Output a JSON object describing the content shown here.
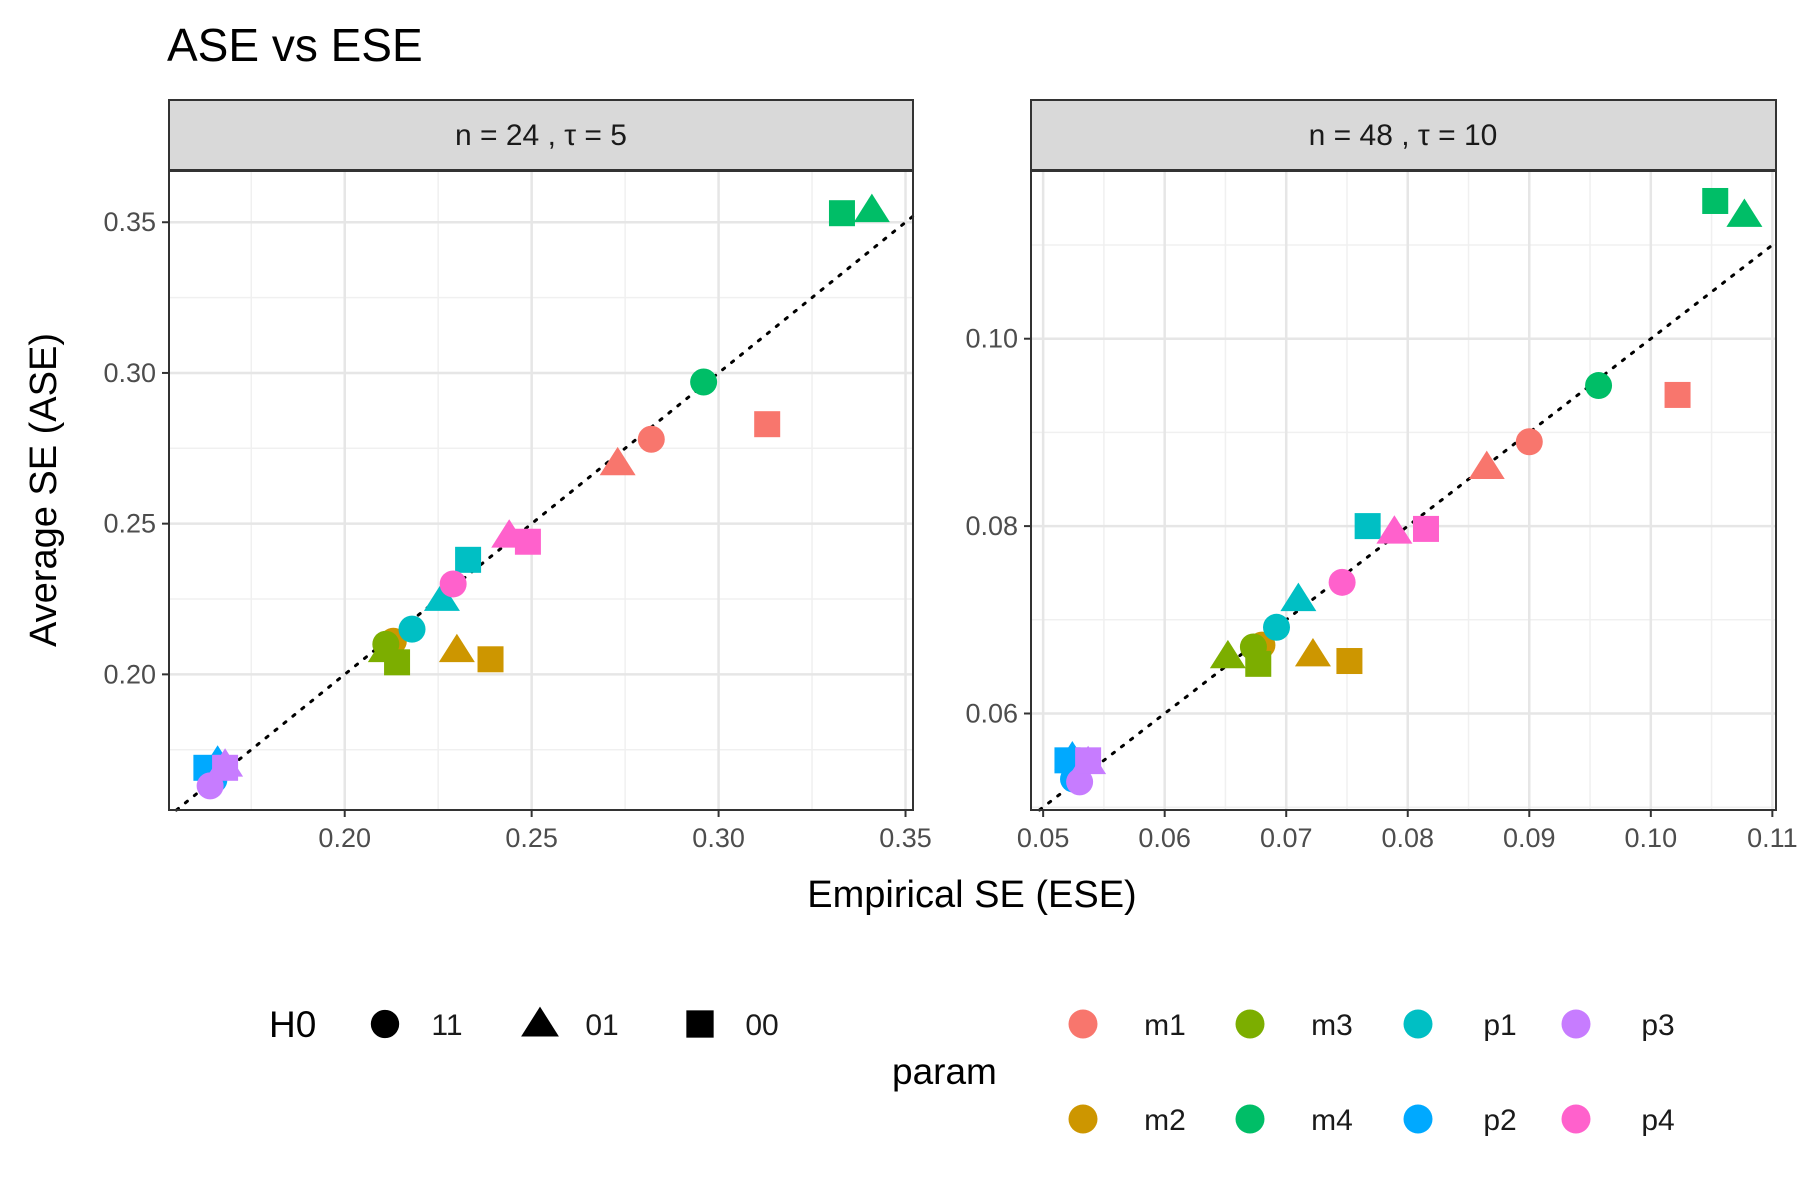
{
  "chart_data": {
    "type": "scatter",
    "title": "ASE vs ESE",
    "xlabel": "Empirical SE (ESE)",
    "ylabel": "Average SE (ASE)",
    "legend_placement": "bottom",
    "colors": {
      "m1": "#F8766D",
      "m2": "#CD9600",
      "m3": "#7CAE00",
      "m4": "#00BE67",
      "p1": "#00BFC4",
      "p2": "#00A9FF",
      "p3": "#C77CFF",
      "p4": "#FF61CC"
    },
    "legends": {
      "shape": {
        "title": "H0",
        "entries": [
          {
            "label": "11",
            "shape": "circle"
          },
          {
            "label": "01",
            "shape": "triangle"
          },
          {
            "label": "00",
            "shape": "square"
          }
        ]
      },
      "color": {
        "title": "param",
        "entries": [
          "m1",
          "m2",
          "m3",
          "m4",
          "p1",
          "p2",
          "p3",
          "p4"
        ]
      }
    },
    "panels": [
      {
        "strip": "n = 24 , τ = 5",
        "xlim": [
          0.153,
          0.352
        ],
        "ylim": [
          0.155,
          0.367
        ],
        "xticks": [
          0.2,
          0.25,
          0.3,
          0.35
        ],
        "xtick_labels": [
          "0.20",
          "0.25",
          "0.30",
          "0.35"
        ],
        "yticks": [
          0.2,
          0.25,
          0.3,
          0.35
        ],
        "ytick_labels": [
          "0.20",
          "0.25",
          "0.30",
          "0.35"
        ],
        "reference_line": "y = x",
        "points": [
          {
            "param": "m1",
            "h0": "11",
            "x": 0.282,
            "y": 0.278
          },
          {
            "param": "m1",
            "h0": "01",
            "x": 0.273,
            "y": 0.27
          },
          {
            "param": "m1",
            "h0": "00",
            "x": 0.313,
            "y": 0.283
          },
          {
            "param": "m2",
            "h0": "11",
            "x": 0.213,
            "y": 0.211
          },
          {
            "param": "m2",
            "h0": "01",
            "x": 0.23,
            "y": 0.208
          },
          {
            "param": "m2",
            "h0": "00",
            "x": 0.239,
            "y": 0.205
          },
          {
            "param": "m3",
            "h0": "11",
            "x": 0.211,
            "y": 0.21
          },
          {
            "param": "m3",
            "h0": "01",
            "x": 0.211,
            "y": 0.208
          },
          {
            "param": "m3",
            "h0": "00",
            "x": 0.214,
            "y": 0.204
          },
          {
            "param": "m4",
            "h0": "11",
            "x": 0.296,
            "y": 0.297
          },
          {
            "param": "m4",
            "h0": "01",
            "x": 0.341,
            "y": 0.354
          },
          {
            "param": "m4",
            "h0": "00",
            "x": 0.333,
            "y": 0.353
          },
          {
            "param": "p1",
            "h0": "11",
            "x": 0.218,
            "y": 0.215
          },
          {
            "param": "p1",
            "h0": "01",
            "x": 0.226,
            "y": 0.225
          },
          {
            "param": "p1",
            "h0": "00",
            "x": 0.233,
            "y": 0.238
          },
          {
            "param": "p2",
            "h0": "11",
            "x": 0.165,
            "y": 0.165
          },
          {
            "param": "p2",
            "h0": "01",
            "x": 0.166,
            "y": 0.171
          },
          {
            "param": "p2",
            "h0": "00",
            "x": 0.163,
            "y": 0.169
          },
          {
            "param": "p3",
            "h0": "11",
            "x": 0.164,
            "y": 0.163
          },
          {
            "param": "p3",
            "h0": "01",
            "x": 0.168,
            "y": 0.17
          },
          {
            "param": "p3",
            "h0": "00",
            "x": 0.168,
            "y": 0.169
          },
          {
            "param": "p4",
            "h0": "11",
            "x": 0.229,
            "y": 0.23
          },
          {
            "param": "p4",
            "h0": "01",
            "x": 0.244,
            "y": 0.246
          },
          {
            "param": "p4",
            "h0": "00",
            "x": 0.249,
            "y": 0.244
          }
        ]
      },
      {
        "strip": "n = 48 , τ = 10",
        "xlim": [
          0.049,
          0.1103
        ],
        "ylim": [
          0.0497,
          0.1179
        ],
        "xticks": [
          0.05,
          0.06,
          0.07,
          0.08,
          0.09,
          0.1,
          0.11
        ],
        "xtick_labels": [
          "0.05",
          "0.06",
          "0.07",
          "0.08",
          "0.09",
          "0.10",
          "0.11"
        ],
        "yticks": [
          0.06,
          0.08,
          0.1
        ],
        "ytick_labels": [
          "0.06",
          "0.08",
          "0.10"
        ],
        "reference_line": "y = x",
        "points": [
          {
            "param": "m1",
            "h0": "11",
            "x": 0.09,
            "y": 0.089
          },
          {
            "param": "m1",
            "h0": "01",
            "x": 0.0865,
            "y": 0.0863
          },
          {
            "param": "m1",
            "h0": "00",
            "x": 0.1022,
            "y": 0.094
          },
          {
            "param": "m2",
            "h0": "11",
            "x": 0.068,
            "y": 0.0673
          },
          {
            "param": "m2",
            "h0": "01",
            "x": 0.0722,
            "y": 0.0663
          },
          {
            "param": "m2",
            "h0": "00",
            "x": 0.0752,
            "y": 0.0656
          },
          {
            "param": "m3",
            "h0": "11",
            "x": 0.0673,
            "y": 0.0671
          },
          {
            "param": "m3",
            "h0": "01",
            "x": 0.0652,
            "y": 0.0661
          },
          {
            "param": "m3",
            "h0": "00",
            "x": 0.0677,
            "y": 0.0653
          },
          {
            "param": "m4",
            "h0": "11",
            "x": 0.0957,
            "y": 0.095
          },
          {
            "param": "m4",
            "h0": "01",
            "x": 0.1077,
            "y": 0.1132
          },
          {
            "param": "m4",
            "h0": "00",
            "x": 0.1053,
            "y": 0.1147
          },
          {
            "param": "p1",
            "h0": "11",
            "x": 0.0692,
            "y": 0.0692
          },
          {
            "param": "p1",
            "h0": "01",
            "x": 0.071,
            "y": 0.0722
          },
          {
            "param": "p1",
            "h0": "00",
            "x": 0.0767,
            "y": 0.08
          },
          {
            "param": "p2",
            "h0": "11",
            "x": 0.0525,
            "y": 0.053
          },
          {
            "param": "p2",
            "h0": "01",
            "x": 0.0524,
            "y": 0.0553
          },
          {
            "param": "p2",
            "h0": "00",
            "x": 0.052,
            "y": 0.055
          },
          {
            "param": "p3",
            "h0": "11",
            "x": 0.053,
            "y": 0.0527
          },
          {
            "param": "p3",
            "h0": "01",
            "x": 0.0537,
            "y": 0.0548
          },
          {
            "param": "p3",
            "h0": "00",
            "x": 0.0537,
            "y": 0.055
          },
          {
            "param": "p4",
            "h0": "11",
            "x": 0.0746,
            "y": 0.074
          },
          {
            "param": "p4",
            "h0": "01",
            "x": 0.0789,
            "y": 0.0794
          },
          {
            "param": "p4",
            "h0": "00",
            "x": 0.0815,
            "y": 0.0797
          }
        ]
      }
    ]
  }
}
